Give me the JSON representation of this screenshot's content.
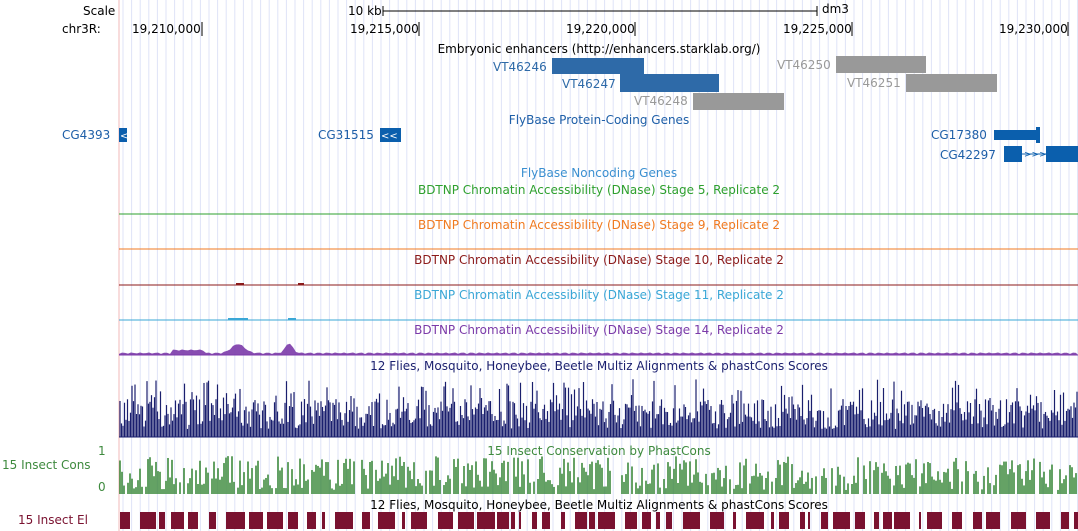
{
  "header": {
    "scale_label": "Scale",
    "chrom_label": "chr3R:",
    "scale_bar_label": "10 kb",
    "assembly": "dm3",
    "positions": [
      "19,210,000",
      "19,215,000",
      "19,220,000",
      "19,225,000",
      "19,230,000"
    ]
  },
  "tracks": {
    "enhancers": {
      "title": "Embryonic enhancers (http://enhancers.starklab.org/)",
      "items": [
        {
          "name": "VT46246",
          "color": "#2e6aa8"
        },
        {
          "name": "VT46247",
          "color": "#2e6aa8"
        },
        {
          "name": "VT46248",
          "color": "#999999"
        },
        {
          "name": "VT46250",
          "color": "#999999"
        },
        {
          "name": "VT46251",
          "color": "#999999"
        }
      ]
    },
    "coding_genes": {
      "title": "FlyBase Protein-Coding Genes",
      "genes": [
        "CG4393",
        "CG31515",
        "CG17380",
        "CG42297"
      ],
      "color": "#0b5fad"
    },
    "noncoding_genes": {
      "title": "FlyBase Noncoding Genes",
      "color": "#3a8fd0"
    },
    "dnase": [
      {
        "title": "BDTNP Chromatin Accessibility (DNase) Stage 5, Replicate 2",
        "color": "#2ea02e"
      },
      {
        "title": "BDTNP Chromatin Accessibility (DNase) Stage 9, Replicate 2",
        "color": "#f07a20"
      },
      {
        "title": "BDTNP Chromatin Accessibility (DNase) Stage 10, Replicate 2",
        "color": "#8b1a1a"
      },
      {
        "title": "BDTNP Chromatin Accessibility (DNase) Stage 11, Replicate 2",
        "color": "#3aa7d6"
      },
      {
        "title": "BDTNP Chromatin Accessibility (DNase) Stage 14, Replicate 2",
        "color": "#7b3aa8"
      }
    ],
    "multiz": {
      "title": "12 Flies, Mosquito, Honeybee, Beetle Multiz Alignments & phastCons Scores",
      "color": "#1a1f6e"
    },
    "insect_cons": {
      "title": "15 Insect Conservation by PhastCons",
      "side_label": "15 Insect Cons",
      "ymax": "1",
      "ymin": "0",
      "color": "#3e8a3e"
    },
    "insect_el": {
      "title": "12 Flies, Mosquito, Honeybee, Beetle Multiz Alignments & phastCons Scores",
      "side_label": "15 Insect El",
      "color": "#7a1230"
    }
  }
}
